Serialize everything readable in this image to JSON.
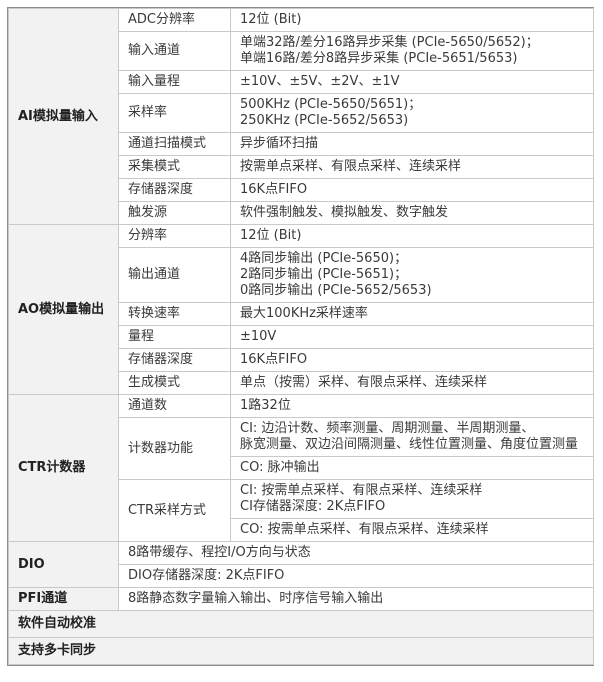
{
  "table": {
    "sections": [
      {
        "category": "AI模拟量输入",
        "rows": [
          {
            "label": "ADC分辨率",
            "value": "12位 (Bit)"
          },
          {
            "label": "输入通道",
            "value": "单端32路/差分16路异步采集 (PCIe-5650/5652)；\n单端16路/差分8路异步采集 (PCIe-5651/5653)"
          },
          {
            "label": "输入量程",
            "value": "±10V、±5V、±2V、±1V"
          },
          {
            "label": "采样率",
            "value": "500KHz (PCIe-5650/5651)；\n250KHz (PCIe-5652/5653)"
          },
          {
            "label": "通道扫描模式",
            "value": "异步循环扫描"
          },
          {
            "label": "采集模式",
            "value": "按需单点采样、有限点采样、连续采样"
          },
          {
            "label": "存储器深度",
            "value": "16K点FIFO"
          },
          {
            "label": "触发源",
            "value": "软件强制触发、模拟触发、数字触发"
          }
        ]
      },
      {
        "category": "AO模拟量输出",
        "rows": [
          {
            "label": "分辨率",
            "value": "12位 (Bit)"
          },
          {
            "label": "输出通道",
            "value": "4路同步输出 (PCIe-5650)；\n2路同步输出 (PCIe-5651)；\n0路同步输出 (PCIe-5652/5653)"
          },
          {
            "label": "转换速率",
            "value": "最大100KHz采样速率"
          },
          {
            "label": "量程",
            "value": "±10V"
          },
          {
            "label": "存储器深度",
            "value": "16K点FIFO"
          },
          {
            "label": "生成模式",
            "value": "单点（按需）采样、有限点采样、连续采样"
          }
        ]
      },
      {
        "category": "CTR计数器",
        "rows": [
          {
            "label": "通道数",
            "values": [
              "1路32位"
            ]
          },
          {
            "label": "计数器功能",
            "values": [
              "CI: 边沿计数、频率测量、周期测量、半周期测量、\n脉宽测量、双边沿间隔测量、线性位置测量、角度位置测量",
              "CO: 脉冲输出"
            ]
          },
          {
            "label": "CTR采样方式",
            "values": [
              "CI: 按需单点采样、有限点采样、连续采样\nCI存储器深度: 2K点FIFO",
              "CO: 按需单点采样、有限点采样、连续采样"
            ]
          }
        ]
      },
      {
        "category": "DIO",
        "rows": [
          {
            "value": "8路带缓存、程控I/O方向与状态"
          },
          {
            "value": "DIO存储器深度: 2K点FIFO"
          }
        ]
      },
      {
        "category": "PFI通道",
        "rows": [
          {
            "value": "8路静态数字量输入输出、时序信号输入输出"
          }
        ]
      }
    ],
    "footer_rows": [
      "软件自动校准",
      "支持多卡同步"
    ]
  },
  "colors": {
    "category_bg": "#f2f2f2",
    "outer_border": "#8c8c8c",
    "inner_border": "#c9c9c9",
    "text": "#343434"
  }
}
